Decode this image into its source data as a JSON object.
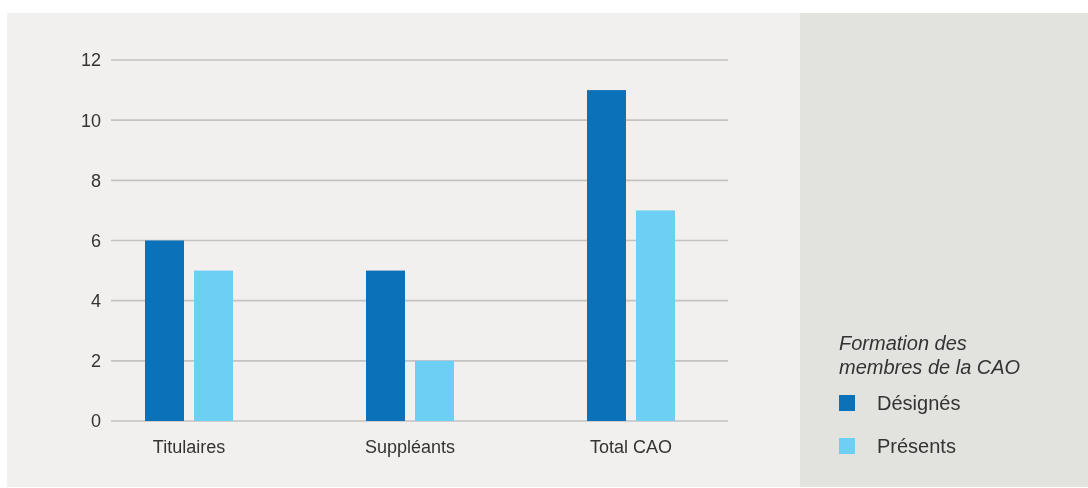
{
  "chart_data": {
    "type": "bar",
    "legend_title": "Formation des membres de la CAO",
    "categories": [
      "Titulaires",
      "Suppléants",
      "Total CAO"
    ],
    "series": [
      {
        "name": "Désignés",
        "color": "#0b72ba",
        "values": [
          6,
          5,
          11
        ]
      },
      {
        "name": "Présents",
        "color": "#6ecff5",
        "values": [
          5,
          2,
          7
        ]
      }
    ],
    "ylim": [
      0,
      12
    ],
    "yticks": [
      0,
      2,
      4,
      6,
      8,
      10,
      12
    ],
    "grid": "y",
    "legend": "bottom right"
  }
}
